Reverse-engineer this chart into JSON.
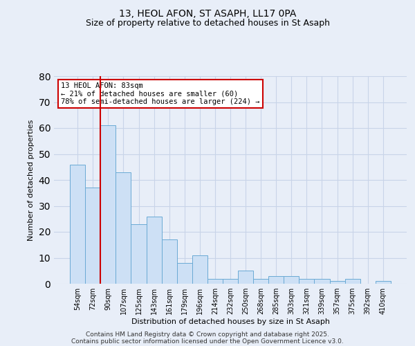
{
  "title1": "13, HEOL AFON, ST ASAPH, LL17 0PA",
  "title2": "Size of property relative to detached houses in St Asaph",
  "xlabel": "Distribution of detached houses by size in St Asaph",
  "ylabel": "Number of detached properties",
  "categories": [
    "54sqm",
    "72sqm",
    "90sqm",
    "107sqm",
    "125sqm",
    "143sqm",
    "161sqm",
    "179sqm",
    "196sqm",
    "214sqm",
    "232sqm",
    "250sqm",
    "268sqm",
    "285sqm",
    "303sqm",
    "321sqm",
    "339sqm",
    "357sqm",
    "375sqm",
    "392sqm",
    "410sqm"
  ],
  "values": [
    46,
    37,
    61,
    43,
    23,
    26,
    17,
    8,
    11,
    2,
    2,
    5,
    2,
    3,
    3,
    2,
    2,
    1,
    2,
    0,
    1
  ],
  "bar_color": "#cde0f5",
  "bar_edge_color": "#6aaad4",
  "red_line_index": 1.5,
  "annotation_text": "13 HEOL AFON: 83sqm\n← 21% of detached houses are smaller (60)\n78% of semi-detached houses are larger (224) →",
  "annotation_box_color": "white",
  "annotation_box_edge_color": "#cc0000",
  "red_line_color": "#cc0000",
  "ylim": [
    0,
    80
  ],
  "yticks": [
    0,
    10,
    20,
    30,
    40,
    50,
    60,
    70,
    80
  ],
  "grid_color": "#c8d4e8",
  "background_color": "#e8eef8",
  "footer1": "Contains HM Land Registry data © Crown copyright and database right 2025.",
  "footer2": "Contains public sector information licensed under the Open Government Licence v3.0."
}
